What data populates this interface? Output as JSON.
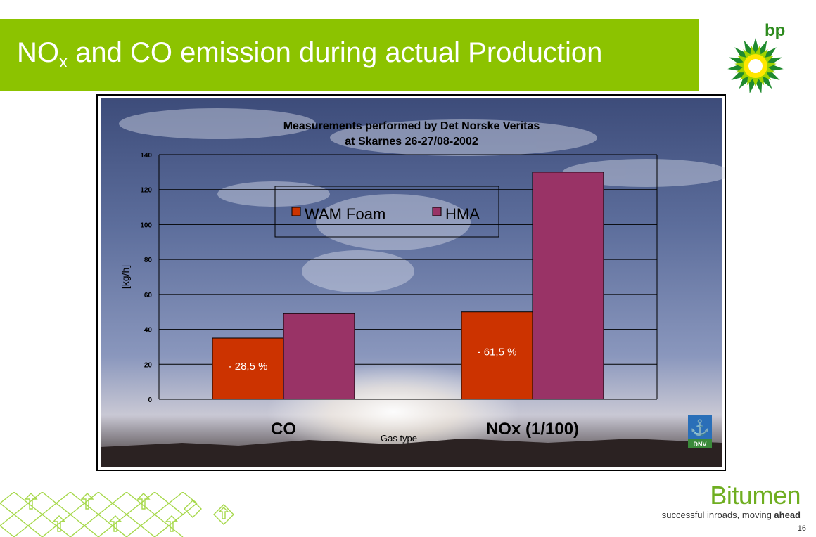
{
  "slide": {
    "title_main": "NO",
    "title_sub": "x",
    "title_rest": " and CO emission during actual Production",
    "logo_text": "bp",
    "brand": "Bitumen",
    "tagline_regular": "successful inroads, moving ",
    "tagline_bold": "ahead",
    "page_number": "16",
    "dnv_text": "DNV"
  },
  "colors": {
    "green_band": "#8cc300",
    "wam_foam": "#cc3300",
    "hma": "#993366"
  },
  "chart_data": {
    "type": "bar",
    "title": "Measurements performed by Det Norske Veritas",
    "subtitle": "at Skarnes 26-27/08-2002",
    "categories": [
      "CO",
      "NOx (1/100)"
    ],
    "series": [
      {
        "name": "WAM Foam",
        "values": [
          35,
          50
        ]
      },
      {
        "name": "HMA",
        "values": [
          49,
          130
        ]
      }
    ],
    "annotations": [
      "- 28,5 %",
      "- 61,5 %"
    ],
    "ylabel": "[kg/h]",
    "xlabel": "Gas type",
    "ylim": [
      0,
      140
    ],
    "yticks": [
      0,
      20,
      40,
      60,
      80,
      100,
      120,
      140
    ],
    "grid": true,
    "legend": "top-center"
  }
}
